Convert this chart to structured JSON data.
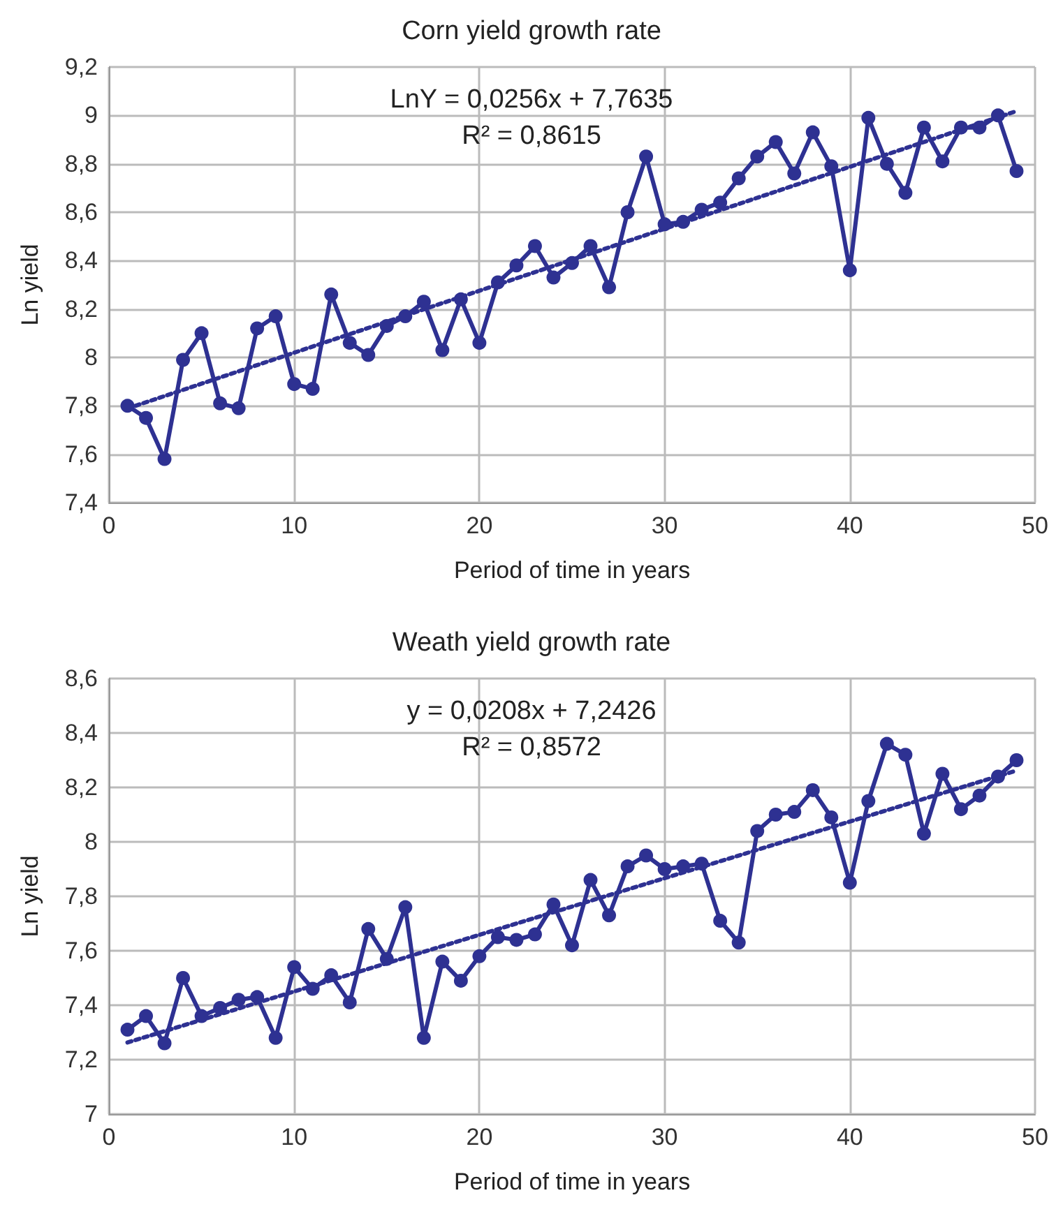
{
  "chart_data": [
    {
      "type": "line",
      "title": "Corn yield growth rate",
      "xlabel": "Period of time in years",
      "ylabel": "Ln yield",
      "grid": true,
      "xlim": [
        0,
        50
      ],
      "xticks": [
        0,
        10,
        20,
        30,
        40,
        50
      ],
      "ylim": [
        7.4,
        9.2
      ],
      "yticks": [
        {
          "value": 7.4,
          "label": "7,4"
        },
        {
          "value": 7.6,
          "label": "7,6"
        },
        {
          "value": 7.8,
          "label": "7,8"
        },
        {
          "value": 8,
          "label": "8"
        },
        {
          "value": 8.2,
          "label": "8,2"
        },
        {
          "value": 8.4,
          "label": "8,4"
        },
        {
          "value": 8.6,
          "label": "8,6"
        },
        {
          "value": 8.8,
          "label": "8,8"
        },
        {
          "value": 9,
          "label": "9"
        },
        {
          "value": 9.2,
          "label": "9,2"
        }
      ],
      "annotations": [
        "LnY = 0,0256x + 7,7635",
        "R² = 0,8615"
      ],
      "series": [
        {
          "color": "#2e3192",
          "marker": "circle",
          "line_style": "solid",
          "x": [
            1,
            2,
            3,
            4,
            5,
            6,
            7,
            8,
            9,
            10,
            11,
            12,
            13,
            14,
            15,
            16,
            17,
            18,
            19,
            20,
            21,
            22,
            23,
            24,
            25,
            26,
            27,
            28,
            29,
            30,
            31,
            32,
            33,
            34,
            35,
            36,
            37,
            38,
            39,
            40,
            41,
            42,
            43,
            44,
            45,
            46,
            47,
            48,
            49
          ],
          "values": [
            7.8,
            7.75,
            7.58,
            7.99,
            8.1,
            7.81,
            7.79,
            8.12,
            8.17,
            7.89,
            7.87,
            8.26,
            8.06,
            8.01,
            8.13,
            8.17,
            8.23,
            8.03,
            8.24,
            8.06,
            8.31,
            8.38,
            8.46,
            8.33,
            8.39,
            8.46,
            8.29,
            8.6,
            8.83,
            8.55,
            8.56,
            8.61,
            8.64,
            8.74,
            8.83,
            8.89,
            8.76,
            8.93,
            8.79,
            8.36,
            8.99,
            8.8,
            8.68,
            8.95,
            8.81,
            8.95,
            8.95,
            9.0,
            8.77
          ]
        },
        {
          "color": "#2e3192",
          "marker": "none",
          "line_style": "dotted",
          "x": [
            1,
            49
          ],
          "values": [
            7.789,
            9.018
          ]
        }
      ]
    },
    {
      "type": "line",
      "title": "Weath yield growth rate",
      "xlabel": "Period of time in years",
      "ylabel": "Ln yield",
      "grid": true,
      "xlim": [
        0,
        50
      ],
      "xticks": [
        0,
        10,
        20,
        30,
        40,
        50
      ],
      "ylim": [
        7,
        8.6
      ],
      "yticks": [
        {
          "value": 7,
          "label": "7"
        },
        {
          "value": 7.2,
          "label": "7,2"
        },
        {
          "value": 7.4,
          "label": "7,4"
        },
        {
          "value": 7.6,
          "label": "7,6"
        },
        {
          "value": 7.8,
          "label": "7,8"
        },
        {
          "value": 8,
          "label": "8"
        },
        {
          "value": 8.2,
          "label": "8,2"
        },
        {
          "value": 8.4,
          "label": "8,4"
        },
        {
          "value": 8.6,
          "label": "8,6"
        }
      ],
      "annotations": [
        "y = 0,0208x + 7,2426",
        "R² = 0,8572"
      ],
      "series": [
        {
          "color": "#2e3192",
          "marker": "circle",
          "line_style": "solid",
          "x": [
            1,
            2,
            3,
            4,
            5,
            6,
            7,
            8,
            9,
            10,
            11,
            12,
            13,
            14,
            15,
            16,
            17,
            18,
            19,
            20,
            21,
            22,
            23,
            24,
            25,
            26,
            27,
            28,
            29,
            30,
            31,
            32,
            33,
            34,
            35,
            36,
            37,
            38,
            39,
            40,
            41,
            42,
            43,
            44,
            45,
            46,
            47,
            48,
            49
          ],
          "values": [
            7.31,
            7.36,
            7.26,
            7.5,
            7.36,
            7.39,
            7.42,
            7.43,
            7.28,
            7.54,
            7.46,
            7.51,
            7.41,
            7.68,
            7.57,
            7.76,
            7.28,
            7.56,
            7.49,
            7.58,
            7.65,
            7.64,
            7.66,
            7.77,
            7.62,
            7.86,
            7.73,
            7.91,
            7.95,
            7.9,
            7.91,
            7.92,
            7.71,
            7.63,
            8.04,
            8.1,
            8.11,
            8.19,
            8.09,
            7.85,
            8.15,
            8.36,
            8.32,
            8.03,
            8.25,
            8.12,
            8.17,
            8.24,
            8.3
          ]
        },
        {
          "color": "#2e3192",
          "marker": "none",
          "line_style": "dotted",
          "x": [
            1,
            49
          ],
          "values": [
            7.263,
            8.262
          ]
        }
      ]
    }
  ]
}
